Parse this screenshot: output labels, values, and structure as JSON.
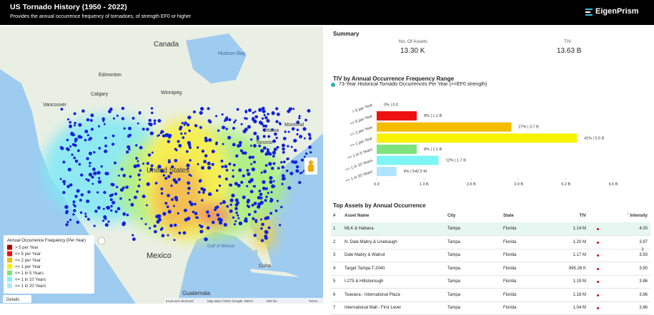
{
  "header": {
    "title": "US Tornado History (1950 - 2022)",
    "subtitle": "Provides the annual occurrence frequency of tornadoes, of strength EF0 or higher",
    "logo": "EigenPrism"
  },
  "map": {
    "labels": [
      "Canada",
      "Hudson Bay",
      "Edmonton",
      "Calgary",
      "Vancouver",
      "Winnipeg",
      "Ottawa",
      "Toronto",
      "Montreal",
      "United States",
      "Mexico",
      "Gulf of Mexico",
      "Cuba",
      "Guatemala"
    ],
    "legend_title": "Annual Occurrence Frequency (Per Year)",
    "details": "Details",
    "attribution": [
      "Keyboard shortcuts",
      "Map data ©2024 Google, INEGI",
      "500 km",
      "Terms"
    ]
  },
  "summary": {
    "title": "Summary",
    "stats": [
      {
        "label": "No. Of Assets",
        "value": "13.30 K"
      },
      {
        "label": "TIV",
        "value": "13.63 B"
      }
    ]
  },
  "chart_data": {
    "type": "hbar",
    "title": "TIV by Annual Occurrence Frequency Range",
    "series_name": "73-Year Historical Tornado Occurrences Per Year (>=EF0 strength)",
    "series_color": "#2bb3b3",
    "categories": [
      "> 5 per Year",
      "<= 5 per Year",
      "<= 2 per Year",
      "<= 1 per Year",
      "<= 1 in 5 Years",
      "<= 1 in 10 Years",
      "<= 1 in 20 Years"
    ],
    "values": [
      0,
      1.1,
      3.7,
      5.5,
      1.1,
      1.7,
      0.5425
    ],
    "value_labels": [
      "0% | 0.0",
      "8% | 1.1 B",
      "27% | 3.7 B",
      "41% | 5.5 B",
      "8% | 1.1 B",
      "12% | 1.7 B",
      "4% | 542.5 M"
    ],
    "colors": [
      "#b30000",
      "#ee1111",
      "#f5bd00",
      "#f7f200",
      "#7ee27e",
      "#7ff5f5",
      "#aee4ff"
    ],
    "xlim": [
      0,
      6.5
    ],
    "xticks": [
      {
        "value": 0,
        "label": "0.0"
      },
      {
        "value": 1.3,
        "label": "1.3 B"
      },
      {
        "value": 2.6,
        "label": "2.6 B"
      },
      {
        "value": 3.9,
        "label": "3.9 B"
      },
      {
        "value": 5.2,
        "label": "5.2 B"
      },
      {
        "value": 6.5,
        "label": "6.5 B"
      }
    ]
  },
  "table": {
    "title": "Top Assets by Annual Occurrence",
    "columns": [
      "#",
      "Asset Name",
      "City",
      "State",
      "TIV",
      "Intensity"
    ],
    "rows": [
      [
        "1",
        "MLK & Habana",
        "Tampa",
        "Florida",
        "1.14 M",
        "4.00"
      ],
      [
        "2",
        "N. Dale Mabry & Linebaugh",
        "Tampa",
        "Florida",
        "1.20 M",
        "3.97"
      ],
      [
        "3",
        "Dale Mabry & Walnut",
        "Tampa",
        "Florida",
        "1.17 M",
        "3.93"
      ],
      [
        "4",
        "Target Tampa T-2040",
        "Tampa",
        "Florida",
        "895.26 K",
        "3.90"
      ],
      [
        "5",
        "I-275 & Hillsborough",
        "Tampa",
        "Florida",
        "1.19 M",
        "3.86"
      ],
      [
        "6",
        "Teavana - International Plaza",
        "Tampa",
        "Florida",
        "1.18 M",
        "3.86"
      ],
      [
        "7",
        "International Mall - First Level",
        "Tampa",
        "Florida",
        "1.04 M",
        "3.86"
      ]
    ]
  }
}
